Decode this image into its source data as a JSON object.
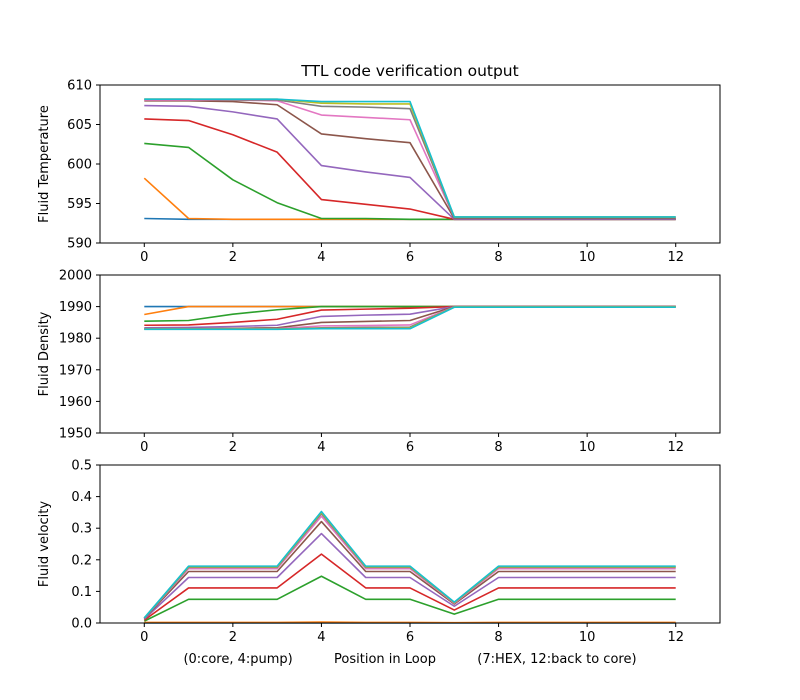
{
  "figure": {
    "title": "TTL code verification output",
    "xlabel": "(0:core, 4:pump)          Position in Loop          (7:HEX, 12:back to core)"
  },
  "palette": [
    "#1f77b4",
    "#ff7f0e",
    "#2ca02c",
    "#d62728",
    "#9467bd",
    "#8c564b",
    "#e377c2",
    "#7f7f7f",
    "#bcbd22",
    "#17becf"
  ],
  "chart_data": [
    {
      "type": "line",
      "ylabel": "Fluid Temperature",
      "xlim": [
        -1,
        13
      ],
      "ylim": [
        590,
        610
      ],
      "xticks": [
        0,
        2,
        4,
        6,
        8,
        10,
        12
      ],
      "yticks": [
        590,
        595,
        600,
        605,
        610
      ],
      "ytick_labels": [
        "590",
        "595",
        "600",
        "605",
        "610"
      ],
      "x": [
        0,
        1,
        2,
        3,
        4,
        5,
        6,
        7,
        8,
        9,
        10,
        11,
        12
      ],
      "series": [
        {
          "values": [
            593.1,
            593.0,
            593.0,
            593.0,
            593.0,
            593.0,
            593.0,
            593.0,
            593.0,
            593.0,
            593.0,
            593.0,
            593.0
          ]
        },
        {
          "values": [
            598.2,
            593.1,
            593.0,
            593.0,
            593.0,
            593.0,
            593.0,
            593.0,
            593.0,
            593.0,
            593.0,
            593.0,
            593.0
          ]
        },
        {
          "values": [
            602.6,
            602.1,
            598.0,
            595.1,
            593.1,
            593.1,
            593.0,
            593.0,
            593.0,
            593.0,
            593.0,
            593.0,
            593.0
          ]
        },
        {
          "values": [
            605.7,
            605.5,
            603.7,
            601.5,
            595.5,
            594.9,
            594.3,
            593.0,
            593.0,
            593.0,
            593.0,
            593.0,
            593.0
          ]
        },
        {
          "values": [
            607.4,
            607.3,
            606.6,
            605.7,
            599.8,
            599.0,
            598.3,
            593.0,
            593.0,
            593.0,
            593.0,
            593.0,
            593.0
          ]
        },
        {
          "values": [
            608.0,
            608.0,
            607.9,
            607.5,
            603.8,
            603.2,
            602.7,
            593.1,
            593.1,
            593.1,
            593.1,
            593.1,
            593.1
          ]
        },
        {
          "values": [
            608.1,
            608.1,
            608.1,
            608.0,
            606.2,
            605.9,
            605.6,
            593.2,
            593.2,
            593.2,
            593.2,
            593.2,
            593.2
          ]
        },
        {
          "values": [
            608.2,
            608.2,
            608.1,
            608.1,
            607.3,
            607.2,
            607.0,
            593.2,
            593.2,
            593.2,
            593.2,
            593.2,
            593.2
          ]
        },
        {
          "values": [
            608.2,
            608.2,
            608.2,
            608.2,
            607.7,
            607.6,
            607.6,
            593.3,
            593.3,
            593.3,
            593.3,
            593.3,
            593.3
          ]
        },
        {
          "values": [
            608.2,
            608.2,
            608.2,
            608.2,
            607.9,
            607.9,
            607.9,
            593.3,
            593.3,
            593.3,
            593.3,
            593.3,
            593.3
          ]
        }
      ]
    },
    {
      "type": "line",
      "ylabel": "Fluid Density",
      "xlim": [
        -1,
        13
      ],
      "ylim": [
        1950,
        2000
      ],
      "xticks": [
        0,
        2,
        4,
        6,
        8,
        10,
        12
      ],
      "yticks": [
        1950,
        1960,
        1970,
        1980,
        1990,
        2000
      ],
      "ytick_labels": [
        "1950",
        "1960",
        "1970",
        "1980",
        "1990",
        "2000"
      ],
      "x": [
        0,
        1,
        2,
        3,
        4,
        5,
        6,
        7,
        8,
        9,
        10,
        11,
        12
      ],
      "series": [
        {
          "values": [
            1990.0,
            1990.0,
            1990.0,
            1990.0,
            1990.0,
            1990.0,
            1990.0,
            1990.0,
            1990.0,
            1990.0,
            1990.0,
            1990.0,
            1990.0
          ]
        },
        {
          "values": [
            1987.5,
            1990.0,
            1990.0,
            1990.0,
            1990.0,
            1990.0,
            1990.0,
            1990.0,
            1990.0,
            1990.0,
            1990.0,
            1990.0,
            1990.0
          ]
        },
        {
          "values": [
            1985.4,
            1985.6,
            1987.6,
            1989.0,
            1990.0,
            1990.0,
            1990.0,
            1990.0,
            1990.0,
            1990.0,
            1990.0,
            1990.0,
            1990.0
          ]
        },
        {
          "values": [
            1984.1,
            1984.2,
            1985.0,
            1986.0,
            1988.9,
            1989.2,
            1989.5,
            1990.0,
            1990.0,
            1990.0,
            1990.0,
            1990.0,
            1990.0
          ]
        },
        {
          "values": [
            1983.3,
            1983.4,
            1983.7,
            1984.1,
            1986.9,
            1987.3,
            1987.6,
            1990.0,
            1990.0,
            1990.0,
            1990.0,
            1990.0,
            1990.0
          ]
        },
        {
          "values": [
            1983.0,
            1983.0,
            1983.1,
            1983.3,
            1985.0,
            1985.3,
            1985.6,
            1990.0,
            1990.0,
            1990.0,
            1990.0,
            1990.0,
            1990.0
          ]
        },
        {
          "values": [
            1982.9,
            1982.9,
            1982.9,
            1983.0,
            1983.9,
            1984.0,
            1984.2,
            1989.9,
            1989.9,
            1989.9,
            1989.9,
            1989.9,
            1989.9
          ]
        },
        {
          "values": [
            1982.9,
            1982.9,
            1982.9,
            1982.9,
            1983.3,
            1983.4,
            1983.5,
            1989.9,
            1989.9,
            1989.9,
            1989.9,
            1989.9,
            1989.9
          ]
        },
        {
          "values": [
            1982.9,
            1982.9,
            1982.9,
            1982.9,
            1983.1,
            1983.1,
            1983.2,
            1989.9,
            1989.9,
            1989.9,
            1989.9,
            1989.9,
            1989.9
          ]
        },
        {
          "values": [
            1982.8,
            1982.8,
            1982.8,
            1982.8,
            1983.0,
            1983.0,
            1983.0,
            1989.8,
            1989.8,
            1989.8,
            1989.8,
            1989.8,
            1989.8
          ]
        }
      ]
    },
    {
      "type": "line",
      "ylabel": "Fluid velocity",
      "xlim": [
        -1,
        13
      ],
      "ylim": [
        0,
        0.5
      ],
      "xticks": [
        0,
        2,
        4,
        6,
        8,
        10,
        12
      ],
      "yticks": [
        0,
        0.1,
        0.2,
        0.3,
        0.4,
        0.5
      ],
      "ytick_labels": [
        "0.0",
        "0.1",
        "0.2",
        "0.3",
        "0.4",
        "0.5"
      ],
      "x": [
        0,
        1,
        2,
        3,
        4,
        5,
        6,
        7,
        8,
        9,
        10,
        11,
        12
      ],
      "series": [
        {
          "values": [
            0.0,
            0.0,
            0.0,
            0.0,
            0.0,
            0.0,
            0.0,
            0.0,
            0.0,
            0.0,
            0.0,
            0.0,
            0.0
          ]
        },
        {
          "values": [
            0.002,
            0.002,
            0.002,
            0.002,
            0.003,
            0.002,
            0.002,
            0.001,
            0.002,
            0.002,
            0.002,
            0.002,
            0.002
          ]
        },
        {
          "values": [
            0.006,
            0.075,
            0.075,
            0.075,
            0.148,
            0.075,
            0.075,
            0.028,
            0.075,
            0.075,
            0.075,
            0.075,
            0.075
          ]
        },
        {
          "values": [
            0.009,
            0.111,
            0.111,
            0.111,
            0.218,
            0.111,
            0.111,
            0.041,
            0.111,
            0.111,
            0.111,
            0.111,
            0.111
          ]
        },
        {
          "values": [
            0.012,
            0.144,
            0.144,
            0.144,
            0.283,
            0.144,
            0.144,
            0.053,
            0.144,
            0.144,
            0.144,
            0.144,
            0.144
          ]
        },
        {
          "values": [
            0.014,
            0.163,
            0.163,
            0.163,
            0.321,
            0.163,
            0.163,
            0.06,
            0.163,
            0.163,
            0.163,
            0.163,
            0.163
          ]
        },
        {
          "values": [
            0.015,
            0.172,
            0.172,
            0.172,
            0.338,
            0.172,
            0.172,
            0.063,
            0.172,
            0.172,
            0.172,
            0.172,
            0.172
          ]
        },
        {
          "values": [
            0.015,
            0.176,
            0.176,
            0.176,
            0.346,
            0.176,
            0.176,
            0.065,
            0.176,
            0.176,
            0.176,
            0.176,
            0.176
          ]
        },
        {
          "values": [
            0.016,
            0.178,
            0.178,
            0.178,
            0.35,
            0.178,
            0.178,
            0.065,
            0.178,
            0.178,
            0.178,
            0.178,
            0.178
          ]
        },
        {
          "values": [
            0.016,
            0.18,
            0.18,
            0.18,
            0.353,
            0.18,
            0.18,
            0.066,
            0.18,
            0.18,
            0.18,
            0.18,
            0.18
          ]
        }
      ]
    }
  ]
}
